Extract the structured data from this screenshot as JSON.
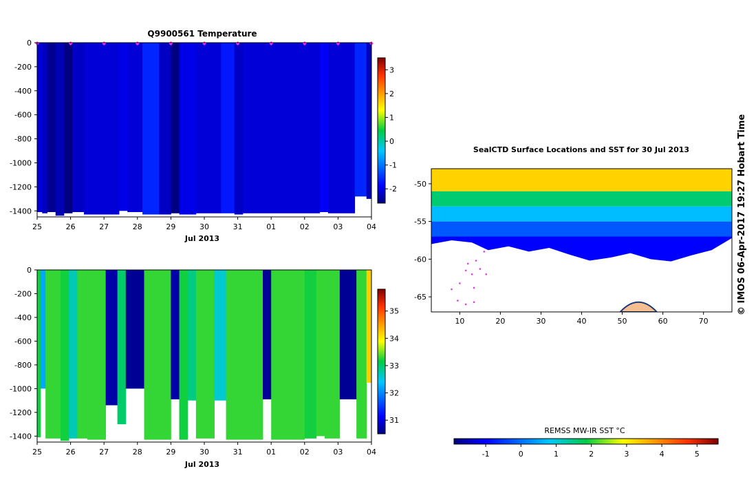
{
  "figure": {
    "credit": "© IMOS 06-Apr-2017 19:27 Hobart Time"
  },
  "chart_data": [
    {
      "type": "heatmap",
      "title": "Q9900561  Temperature",
      "xlabel": "Jul 2013",
      "ylabel": "",
      "x_ticks": [
        "25",
        "26",
        "27",
        "28",
        "29",
        "30",
        "31",
        "01",
        "02",
        "03",
        "04"
      ],
      "y_ticks": [
        0,
        -200,
        -400,
        -600,
        -800,
        -1000,
        -1200,
        -1400
      ],
      "ylim": [
        -1450,
        0
      ],
      "colorbar": {
        "ticks": [
          -2,
          -1,
          0,
          1,
          2,
          3
        ],
        "range": [
          -2.6,
          3.5
        ]
      },
      "profile_markers": [
        "25",
        "26",
        "27",
        "28",
        "29",
        "30",
        "31",
        "01",
        "02",
        "03",
        "04"
      ],
      "marker_color": "#ff33ff",
      "profiles": [
        {
          "day": 25.0,
          "width": 0.15,
          "bottom": -1410,
          "value": -2.1
        },
        {
          "day": 25.15,
          "width": 0.15,
          "bottom": -1420,
          "value": -2.2
        },
        {
          "day": 25.3,
          "width": 0.25,
          "bottom": -1410,
          "value": -2.5
        },
        {
          "day": 25.55,
          "width": 0.25,
          "bottom": -1440,
          "value": -2.3
        },
        {
          "day": 25.8,
          "width": 0.25,
          "bottom": -1420,
          "value": -2.6
        },
        {
          "day": 26.05,
          "width": 0.35,
          "bottom": -1410,
          "value": -2.2
        },
        {
          "day": 26.4,
          "width": 0.6,
          "bottom": -1430,
          "value": -2.1
        },
        {
          "day": 27.0,
          "width": 0.45,
          "bottom": -1430,
          "value": -2.1
        },
        {
          "day": 27.45,
          "width": 0.25,
          "bottom": -1400,
          "value": -2.0
        },
        {
          "day": 27.7,
          "width": 0.45,
          "bottom": -1410,
          "value": -2.1
        },
        {
          "day": 28.15,
          "width": 0.5,
          "bottom": -1430,
          "value": -1.6
        },
        {
          "day": 28.65,
          "width": 0.35,
          "bottom": -1430,
          "value": -2.2
        },
        {
          "day": 29.0,
          "width": 0.25,
          "bottom": -1420,
          "value": -2.6
        },
        {
          "day": 29.25,
          "width": 0.5,
          "bottom": -1430,
          "value": -2.0
        },
        {
          "day": 29.75,
          "width": 0.75,
          "bottom": -1420,
          "value": -2.1
        },
        {
          "day": 30.5,
          "width": 0.4,
          "bottom": -1420,
          "value": -1.7
        },
        {
          "day": 30.9,
          "width": 0.25,
          "bottom": -1430,
          "value": -2.2
        },
        {
          "day": 31.15,
          "width": 0.85,
          "bottom": -1420,
          "value": -2.1
        },
        {
          "day": 32.0,
          "width": 1.0,
          "bottom": -1420,
          "value": -2.1
        },
        {
          "day": 33.0,
          "width": 0.45,
          "bottom": -1420,
          "value": -2.1
        },
        {
          "day": 33.45,
          "width": 0.25,
          "bottom": -1410,
          "value": -1.9
        },
        {
          "day": 33.7,
          "width": 0.35,
          "bottom": -1420,
          "value": -2.1
        },
        {
          "day": 34.05,
          "width": 0.45,
          "bottom": -1420,
          "value": -2.1
        },
        {
          "day": 34.5,
          "width": 0.35,
          "bottom": -1280,
          "value": -1.6
        },
        {
          "day": 34.85,
          "width": 0.15,
          "bottom": -1300,
          "value": -2.3
        }
      ]
    },
    {
      "type": "heatmap",
      "title": "",
      "xlabel": "Jul 2013",
      "ylabel": "",
      "x_ticks": [
        "25",
        "26",
        "27",
        "28",
        "29",
        "30",
        "31",
        "01",
        "02",
        "03",
        "04"
      ],
      "y_ticks": [
        0,
        -200,
        -400,
        -600,
        -800,
        -1000,
        -1200,
        -1400
      ],
      "ylim": [
        -1450,
        0
      ],
      "colorbar": {
        "ticks": [
          31,
          32,
          33,
          34,
          35
        ],
        "range": [
          30.5,
          35.8
        ]
      },
      "profiles": [
        {
          "day": 25.0,
          "width": 0.1,
          "bottom": -1410,
          "value": 33.2
        },
        {
          "day": 25.1,
          "width": 0.15,
          "bottom": -1000,
          "value": 32.2
        },
        {
          "day": 25.25,
          "width": 0.45,
          "bottom": -1420,
          "value": 33.3
        },
        {
          "day": 25.7,
          "width": 0.25,
          "bottom": -1440,
          "value": 33.2
        },
        {
          "day": 25.95,
          "width": 0.25,
          "bottom": -1420,
          "value": 32.7
        },
        {
          "day": 26.2,
          "width": 0.3,
          "bottom": -1420,
          "value": 33.3
        },
        {
          "day": 26.5,
          "width": 0.55,
          "bottom": -1430,
          "value": 33.3
        },
        {
          "day": 27.05,
          "width": 0.35,
          "bottom": -1140,
          "value": 30.7
        },
        {
          "day": 27.4,
          "width": 0.25,
          "bottom": -1300,
          "value": 33.0
        },
        {
          "day": 27.65,
          "width": 0.55,
          "bottom": -1000,
          "value": 30.6
        },
        {
          "day": 28.2,
          "width": 0.8,
          "bottom": -1430,
          "value": 33.3
        },
        {
          "day": 29.0,
          "width": 0.25,
          "bottom": -1090,
          "value": 30.7
        },
        {
          "day": 29.25,
          "width": 0.25,
          "bottom": -1430,
          "value": 33.2
        },
        {
          "day": 29.5,
          "width": 0.25,
          "bottom": -1100,
          "value": 32.9
        },
        {
          "day": 29.75,
          "width": 0.55,
          "bottom": -1420,
          "value": 33.3
        },
        {
          "day": 30.3,
          "width": 0.35,
          "bottom": -1100,
          "value": 32.6
        },
        {
          "day": 30.65,
          "width": 1.1,
          "bottom": -1430,
          "value": 33.3
        },
        {
          "day": 31.75,
          "width": 0.25,
          "bottom": -1090,
          "value": 30.6
        },
        {
          "day": 32.0,
          "width": 1.0,
          "bottom": -1430,
          "value": 33.3
        },
        {
          "day": 33.0,
          "width": 0.35,
          "bottom": -1420,
          "value": 33.2
        },
        {
          "day": 33.35,
          "width": 0.25,
          "bottom": -1400,
          "value": 33.3
        },
        {
          "day": 33.6,
          "width": 0.45,
          "bottom": -1420,
          "value": 33.3
        },
        {
          "day": 34.05,
          "width": 0.5,
          "bottom": -1090,
          "value": 30.6
        },
        {
          "day": 34.55,
          "width": 0.3,
          "bottom": -1420,
          "value": 33.3
        },
        {
          "day": 34.85,
          "width": 0.15,
          "bottom": -950,
          "value": 34.2
        }
      ]
    },
    {
      "type": "heatmap",
      "title": "SealCTD Surface Locations and SST for 30 Jul 2013",
      "xlabel": "",
      "ylabel": "",
      "x_ticks": [
        10,
        20,
        30,
        40,
        50,
        60,
        70
      ],
      "y_ticks": [
        -50,
        -55,
        -60,
        -65
      ],
      "xlim": [
        3,
        77
      ],
      "ylim": [
        -67,
        -48
      ],
      "colorbar": {
        "label": "REMSS MW-IR SST °C",
        "ticks": [
          -1,
          0,
          1,
          2,
          3,
          4,
          5
        ],
        "range": [
          -1.9,
          5.6
        ]
      },
      "sst_bands": [
        {
          "lat_top": -48,
          "value": 3.3
        },
        {
          "lat_top": -51,
          "value": 1.6
        },
        {
          "lat_top": -53,
          "value": 0.7
        },
        {
          "lat_top": -55,
          "value": -0.2
        },
        {
          "lat_top": -57,
          "value": -1.0
        }
      ],
      "ice_edge": [
        {
          "lon": 3,
          "lat": -58
        },
        {
          "lon": 8,
          "lat": -57.5
        },
        {
          "lon": 13,
          "lat": -57.8
        },
        {
          "lon": 17,
          "lat": -58.8
        },
        {
          "lon": 22,
          "lat": -58.3
        },
        {
          "lon": 27,
          "lat": -59.0
        },
        {
          "lon": 32,
          "lat": -58.5
        },
        {
          "lon": 37,
          "lat": -59.4
        },
        {
          "lon": 42,
          "lat": -60.2
        },
        {
          "lon": 47,
          "lat": -59.8
        },
        {
          "lon": 52,
          "lat": -59.2
        },
        {
          "lon": 57,
          "lat": -60.0
        },
        {
          "lon": 62,
          "lat": -60.3
        },
        {
          "lon": 67,
          "lat": -59.5
        },
        {
          "lon": 72,
          "lat": -58.8
        },
        {
          "lon": 77,
          "lat": -57.2
        }
      ],
      "seal_track": [
        {
          "lon": 16,
          "lat": -59.0
        },
        {
          "lon": 14,
          "lat": -60.2
        },
        {
          "lon": 12,
          "lat": -60.6
        },
        {
          "lon": 11.5,
          "lat": -61.5
        },
        {
          "lon": 13,
          "lat": -62.0
        },
        {
          "lon": 15,
          "lat": -61.3
        },
        {
          "lon": 16.5,
          "lat": -62.0
        },
        {
          "lon": 13.5,
          "lat": -63.8
        },
        {
          "lon": 10,
          "lat": -63.2
        },
        {
          "lon": 8,
          "lat": -64.0
        },
        {
          "lon": 9.5,
          "lat": -65.5
        },
        {
          "lon": 11.5,
          "lat": -66.0
        },
        {
          "lon": 13.5,
          "lat": -65.7
        }
      ],
      "track_color": "#e238e2",
      "land": {
        "lon_center": 54,
        "lat_bottom": -67,
        "lon_halfwidth": 4.5,
        "lat_height": 1.3,
        "color": "#f5be90"
      }
    }
  ]
}
